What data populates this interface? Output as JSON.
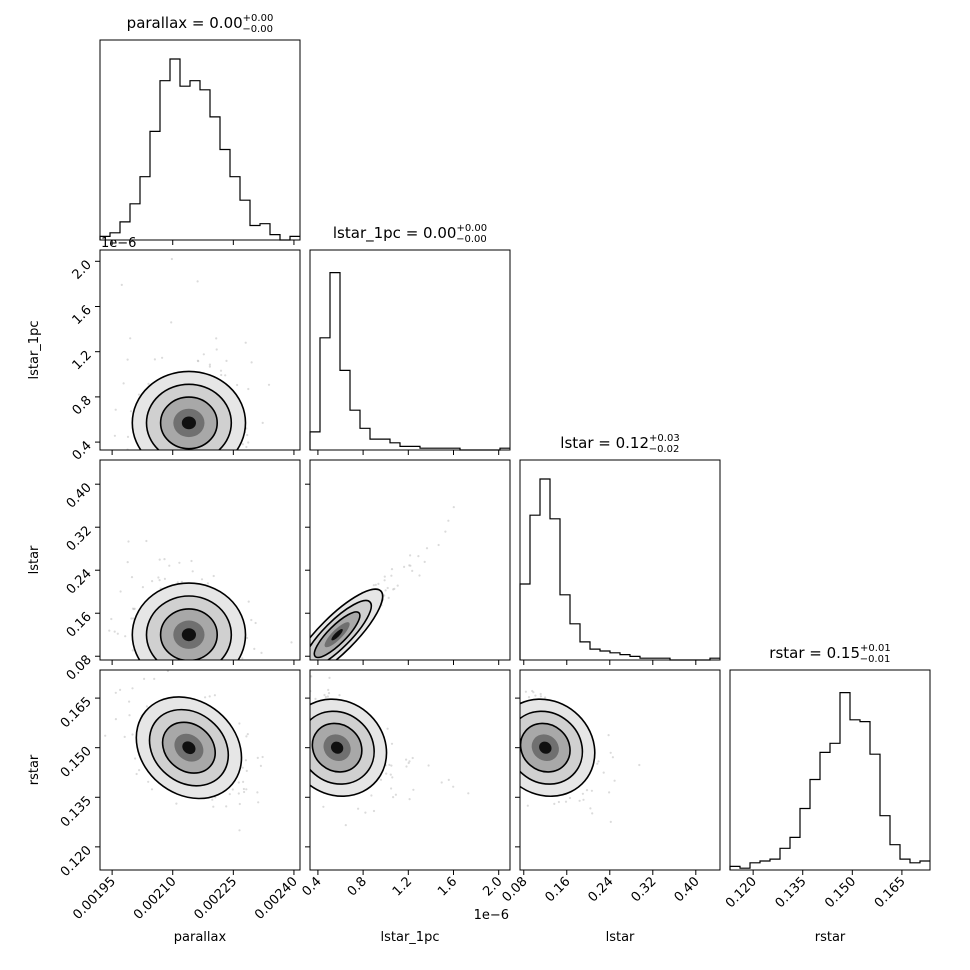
{
  "chart_data": {
    "type": "corner",
    "variables": [
      {
        "name": "parallax",
        "title": "parallax = 0.00",
        "title_sup": "+0.00",
        "title_sub": "−0.00",
        "range": [
          0.00192,
          0.002415
        ],
        "ticks": [
          0.00195,
          0.0021,
          0.00225,
          0.0024
        ],
        "tick_labels": [
          "0.00195",
          "0.00210",
          "0.00225",
          "0.00240"
        ],
        "offset_label": ""
      },
      {
        "name": "lstar_1pc",
        "title": "lstar_1pc = 0.00",
        "title_sup": "+0.00",
        "title_sub": "−0.00",
        "range": [
          0.33,
          2.1
        ],
        "ticks": [
          0.4,
          0.8,
          1.2,
          1.6,
          2.0
        ],
        "tick_labels": [
          "0.4",
          "0.8",
          "1.2",
          "1.6",
          "2.0"
        ],
        "offset_label": "1e−6"
      },
      {
        "name": "lstar",
        "title": "lstar = 0.12",
        "title_sup": "+0.03",
        "title_sub": "−0.02",
        "range": [
          0.073,
          0.445
        ],
        "ticks": [
          0.08,
          0.16,
          0.24,
          0.32,
          0.4
        ],
        "tick_labels": [
          "0.08",
          "0.16",
          "0.24",
          "0.32",
          "0.40"
        ],
        "offset_label": ""
      },
      {
        "name": "rstar",
        "title": "rstar = 0.15",
        "title_sup": "+0.01",
        "title_sub": "−0.01",
        "range": [
          0.113,
          0.1735
        ],
        "ticks": [
          0.12,
          0.135,
          0.15,
          0.165
        ],
        "tick_labels": [
          "0.120",
          "0.135",
          "0.150",
          "0.165"
        ],
        "offset_label": ""
      }
    ],
    "histograms": [
      [
        0.02,
        0.04,
        0.1,
        0.2,
        0.35,
        0.6,
        0.88,
        1.0,
        0.85,
        0.88,
        0.83,
        0.68,
        0.5,
        0.35,
        0.22,
        0.08,
        0.09,
        0.03,
        0.0,
        0.02
      ],
      [
        0.1,
        0.62,
        0.98,
        0.44,
        0.22,
        0.12,
        0.06,
        0.06,
        0.04,
        0.02,
        0.02,
        0.01,
        0.01,
        0.01,
        0.01,
        0.0,
        0.0,
        0.0,
        0.0,
        0.01
      ],
      [
        0.42,
        0.8,
        1.0,
        0.78,
        0.36,
        0.2,
        0.1,
        0.06,
        0.05,
        0.04,
        0.03,
        0.02,
        0.01,
        0.01,
        0.01,
        0.0,
        0.0,
        0.0,
        0.0,
        0.01
      ],
      [
        0.02,
        0.01,
        0.04,
        0.05,
        0.06,
        0.12,
        0.18,
        0.34,
        0.5,
        0.65,
        0.7,
        0.98,
        0.83,
        0.82,
        0.64,
        0.3,
        0.14,
        0.06,
        0.04,
        0.05
      ]
    ],
    "medians": [
      0.00214,
      0.57,
      0.12,
      0.15
    ],
    "spreads": [
      7e-05,
      0.1,
      0.025,
      0.007
    ],
    "correlations": {
      "1,0": -0.05,
      "2,0": -0.05,
      "2,1": 0.97,
      "3,0": -0.55,
      "3,1": -0.5,
      "3,2": -0.5
    },
    "grid": false
  }
}
